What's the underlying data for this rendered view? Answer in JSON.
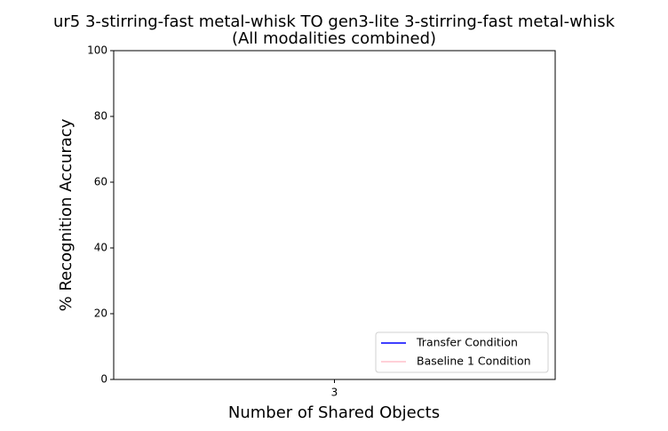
{
  "chart_data": {
    "type": "line",
    "title": "ur5 3-stirring-fast metal-whisk TO gen3-lite 3-stirring-fast metal-whisk",
    "subtitle": "(All modalities combined)",
    "xlabel": "Number of Shared Objects",
    "ylabel": "% Recognition Accuracy",
    "x": [
      3
    ],
    "series": [
      {
        "name": "Transfer Condition",
        "color": "#0000ff",
        "values": [
          null
        ]
      },
      {
        "name": "Baseline 1 Condition",
        "color": "#ffc0cb",
        "values": [
          null
        ]
      }
    ],
    "xlim": [
      2.9,
      3.1
    ],
    "xticks": [
      3
    ],
    "ylim": [
      0,
      100
    ],
    "yticks": [
      0,
      20,
      40,
      60,
      80,
      100
    ],
    "legend": "lower right"
  }
}
